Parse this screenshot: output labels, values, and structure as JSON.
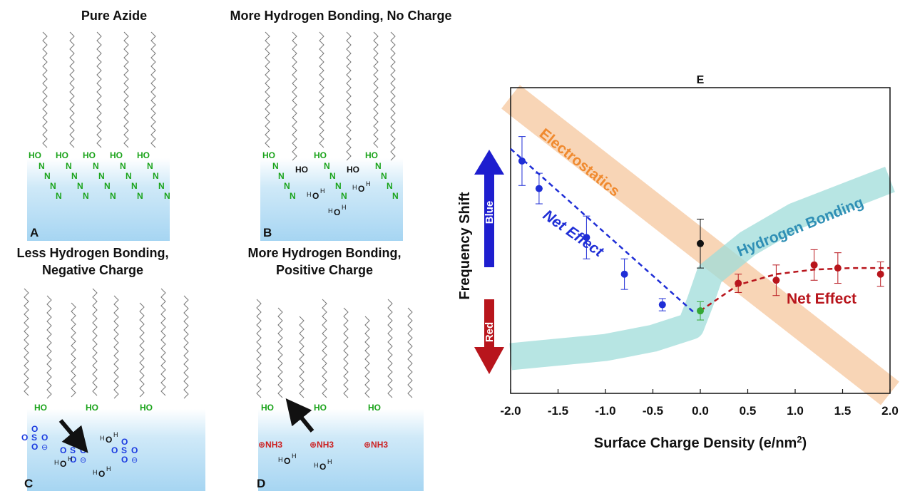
{
  "panels": {
    "a": {
      "title": "Pure Azide",
      "letter": "A"
    },
    "b": {
      "title": "More Hydrogen Bonding, No Charge",
      "letter": "B"
    },
    "c": {
      "title_line1": "Less Hydrogen Bonding,",
      "title_line2": "Negative Charge",
      "letter": "C"
    },
    "d": {
      "title_line1": "More Hydrogen Bonding,",
      "title_line2": "Positive Charge",
      "letter": "D"
    }
  },
  "chem_labels": {
    "ho": "HO",
    "n": "N",
    "o": "O",
    "h": "H",
    "s": "S",
    "neg_charge": "⊖",
    "nh3": "⊕NH3"
  },
  "colors": {
    "azide_green": "#1aa31a",
    "sulfonate_blue": "#1a3ae0",
    "ammonium_red": "#cc1f1f",
    "water_top": "#ffffff",
    "water_bottom": "#a9d6f2",
    "electrostatics_band": "#f6c79e",
    "hbond_band": "#9fdcd9",
    "net_blue": "#1f2ed6",
    "net_red": "#b8151c"
  },
  "chart": {
    "panel_letter": "E",
    "ylabel": "Frequency Shift",
    "blue_arrow_label": "Blue",
    "red_arrow_label": "Red",
    "band_electrostatics_label": "Electrostatics",
    "band_hbond_label": "Hydrogen Bonding",
    "net_effect_left_label": "Net Effect",
    "net_effect_right_label": "Net Effect"
  },
  "chart_data": {
    "type": "scatter",
    "title": "E",
    "xlabel": "Surface Charge Density (e/nm2)",
    "ylabel": "Frequency Shift",
    "xlim": [
      -2.0,
      2.0
    ],
    "ylim": [
      0,
      10
    ],
    "xticks": [
      -2.0,
      -1.5,
      -1.0,
      -0.5,
      0.0,
      0.5,
      1.0,
      1.5,
      2.0
    ],
    "xtick_labels": [
      "-2.0",
      "-1.5",
      "-1.0",
      "-0.5",
      "0.0",
      "0.5",
      "1.0",
      "1.5",
      "2.0"
    ],
    "y_axis_ticks_shown": false,
    "series": [
      {
        "color": "#1f2ed6",
        "x": [
          -1.88,
          -1.7,
          -1.2,
          -0.8,
          -0.4
        ],
        "y": [
          7.6,
          6.7,
          5.1,
          3.9,
          2.9
        ],
        "err": [
          0.8,
          0.5,
          0.7,
          0.5,
          0.2
        ]
      },
      {
        "color": "#b8151c",
        "x": [
          0.4,
          0.8,
          1.2,
          1.45,
          1.9
        ],
        "y": [
          3.6,
          3.7,
          4.2,
          4.1,
          3.9
        ],
        "err": [
          0.3,
          0.5,
          0.5,
          0.5,
          0.4
        ]
      },
      {
        "color": "#111111",
        "x": [
          0.0
        ],
        "y": [
          4.9
        ],
        "err": [
          0.8
        ]
      },
      {
        "color": "#33a833",
        "x": [
          0.0
        ],
        "y": [
          2.7
        ],
        "err": [
          0.3
        ]
      }
    ],
    "fits": [
      {
        "color": "#1f2ed6",
        "x": [
          -2.0,
          -0.05
        ],
        "y": [
          8.0,
          2.6
        ]
      },
      {
        "color": "#b8151c",
        "x": [
          0.0,
          0.4,
          0.8,
          1.2,
          1.6,
          2.0
        ],
        "y": [
          2.7,
          3.55,
          3.9,
          4.05,
          4.1,
          4.1
        ]
      }
    ],
    "bands": [
      {
        "name": "Electrostatics",
        "x": [
          -2.0,
          2.0
        ],
        "y": [
          9.7,
          -0.4
        ]
      },
      {
        "name": "Hydrogen Bonding",
        "x": [
          -2.0,
          -1.0,
          -0.5,
          -0.1,
          0.0,
          0.1,
          0.5,
          1.0,
          2.0
        ],
        "y": [
          1.2,
          1.5,
          1.8,
          2.2,
          3.0,
          3.9,
          4.9,
          5.8,
          7.0
        ]
      }
    ]
  }
}
